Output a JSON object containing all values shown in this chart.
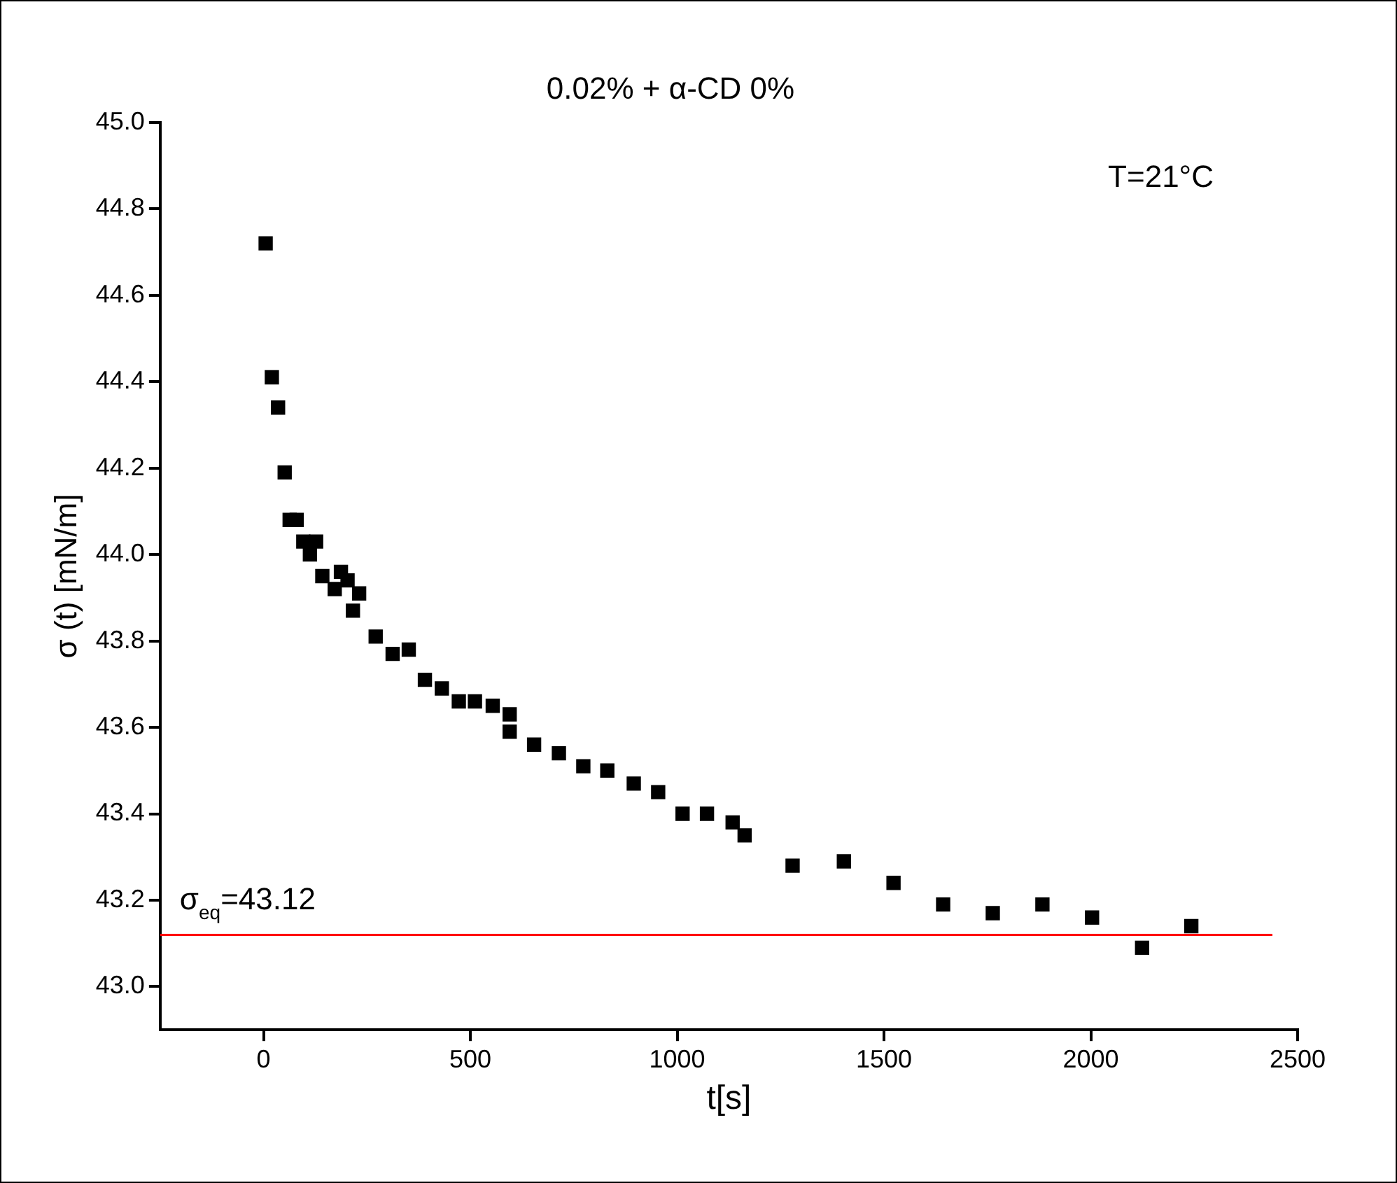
{
  "chart_data": {
    "type": "scatter",
    "title": "0.02% + α-CD 0%",
    "xlabel": "t[s]",
    "ylabel": "σ (t) [mN/m]",
    "annotations": [
      "T=21°C"
    ],
    "marker": "square",
    "grid": false,
    "legend": false,
    "xlim": [
      -250,
      2500
    ],
    "xticks": [
      0,
      500,
      1000,
      1500,
      2000,
      2500
    ],
    "ylim": [
      42.9,
      45.0
    ],
    "yticks": [
      {
        "value": 43,
        "label": "43.0"
      },
      43.2,
      43.4,
      43.6,
      43.8,
      {
        "value": 44,
        "label": "44.0"
      },
      44.2,
      44.4,
      44.6,
      44.8,
      {
        "value": 45,
        "label": "45.0"
      }
    ],
    "ref_lines": [
      {
        "axis": "y",
        "value": 43.12,
        "label": "σ$_{eq}$=43.12",
        "color": "#ff0000"
      }
    ],
    "series": [
      {
        "color": "#000000",
        "x": [
          5,
          20,
          35,
          51,
          63,
          80,
          96,
          127,
          112,
          142,
          172,
          187,
          203,
          231,
          216,
          271,
          312,
          351,
          390,
          431,
          472,
          511,
          554,
          595,
          595,
          654,
          714,
          773,
          831,
          895,
          954,
          1013,
          1072,
          1134,
          1163,
          1279,
          1403,
          1523,
          1643,
          1763,
          1883,
          2003,
          2124,
          2243
        ],
        "values": [
          44.72,
          44.41,
          44.34,
          44.19,
          44.08,
          44.08,
          44.03,
          44.03,
          44.0,
          43.95,
          43.92,
          43.96,
          43.94,
          43.91,
          43.87,
          43.81,
          43.77,
          43.78,
          43.71,
          43.69,
          43.66,
          43.66,
          43.65,
          43.63,
          43.59,
          43.56,
          43.54,
          43.51,
          43.5,
          43.47,
          43.45,
          43.4,
          43.4,
          43.38,
          43.35,
          43.28,
          43.29,
          43.24,
          43.19,
          43.17,
          43.19,
          43.16,
          43.09,
          43.14
        ]
      }
    ]
  }
}
